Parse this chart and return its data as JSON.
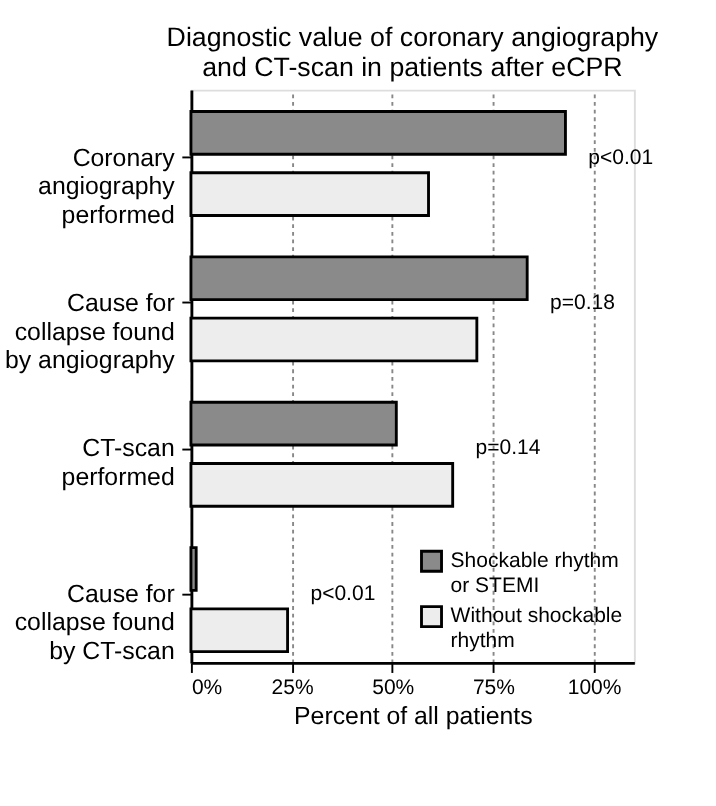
{
  "chart_data": {
    "type": "bar",
    "orientation": "horizontal",
    "title": "Diagnostic value of coronary angiography and CT-scan in patients after eCPR",
    "xlabel": "Percent of all patients",
    "categories": [
      "Coronary angiography performed",
      "Cause for collapse found by angiography",
      "CT-scan performed",
      "Cause for collapse found by CT-scan"
    ],
    "series": [
      {
        "name": "Shockable rhythm or STEMI",
        "color": "#8a8a8a",
        "values": [
          93,
          83.5,
          51,
          1.3
        ]
      },
      {
        "name": "Without shockable rhythm",
        "color": "#ededed",
        "values": [
          59,
          71,
          65,
          24
        ]
      }
    ],
    "xlim": [
      0,
      110
    ],
    "xticks": [
      {
        "value": 0,
        "label": "0%"
      },
      {
        "value": 25,
        "label": "25%"
      },
      {
        "value": 50,
        "label": "50%"
      },
      {
        "value": 75,
        "label": "75%"
      },
      {
        "value": 100,
        "label": "100%"
      }
    ],
    "grid": "x",
    "legend": "bottom right",
    "annotations": [
      "p<0.01",
      "p=0.18",
      "p=0.14",
      "p<0.01"
    ]
  }
}
